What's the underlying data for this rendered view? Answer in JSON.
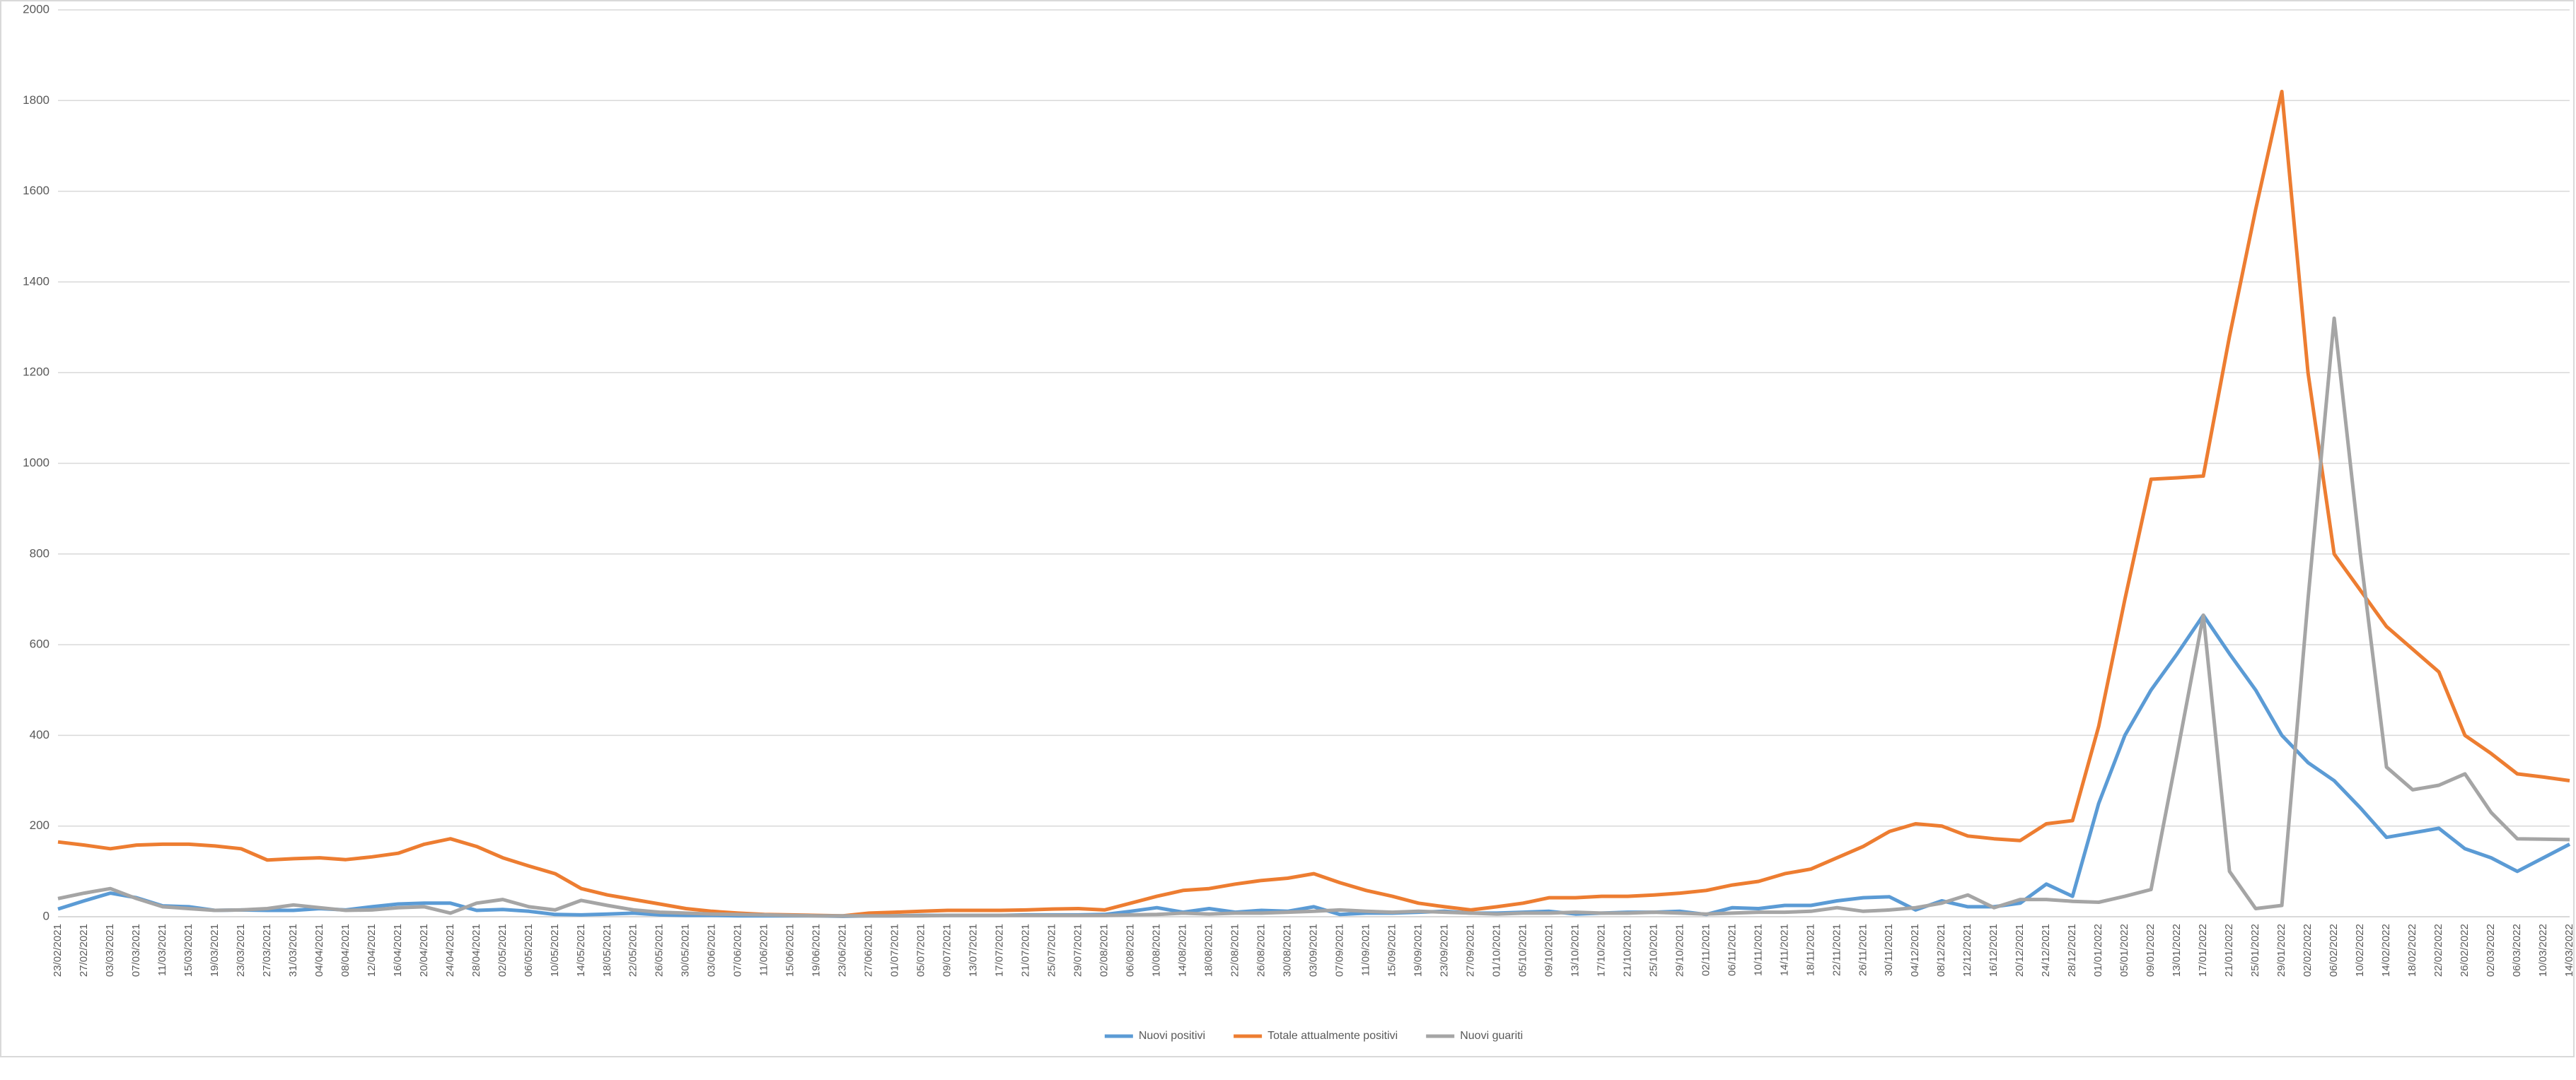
{
  "chart_data": {
    "type": "line",
    "categories": [
      "23/02/2021",
      "27/02/2021",
      "03/03/2021",
      "07/03/2021",
      "11/03/2021",
      "15/03/2021",
      "19/03/2021",
      "23/03/2021",
      "27/03/2021",
      "31/03/2021",
      "04/04/2021",
      "08/04/2021",
      "12/04/2021",
      "16/04/2021",
      "20/04/2021",
      "24/04/2021",
      "28/04/2021",
      "02/05/2021",
      "06/05/2021",
      "10/05/2021",
      "14/05/2021",
      "18/05/2021",
      "22/05/2021",
      "26/05/2021",
      "30/05/2021",
      "03/06/2021",
      "07/06/2021",
      "11/06/2021",
      "15/06/2021",
      "19/06/2021",
      "23/06/2021",
      "27/06/2021",
      "01/07/2021",
      "05/07/2021",
      "09/07/2021",
      "13/07/2021",
      "17/07/2021",
      "21/07/2021",
      "25/07/2021",
      "29/07/2021",
      "02/08/2021",
      "06/08/2021",
      "10/08/2021",
      "14/08/2021",
      "18/08/2021",
      "22/08/2021",
      "26/08/2021",
      "30/08/2021",
      "03/09/2021",
      "07/09/2021",
      "11/09/2021",
      "15/09/2021",
      "19/09/2021",
      "23/09/2021",
      "27/09/2021",
      "01/10/2021",
      "05/10/2021",
      "09/10/2021",
      "13/10/2021",
      "17/10/2021",
      "21/10/2021",
      "25/10/2021",
      "29/10/2021",
      "02/11/2021",
      "06/11/2021",
      "10/11/2021",
      "14/11/2021",
      "18/11/2021",
      "22/11/2021",
      "26/11/2021",
      "30/11/2021",
      "04/12/2021",
      "08/12/2021",
      "12/12/2021",
      "16/12/2021",
      "20/12/2021",
      "24/12/2021",
      "28/12/2021",
      "01/01/2022",
      "05/01/2022",
      "09/01/2022",
      "13/01/2022",
      "17/01/2022",
      "21/01/2022",
      "25/01/2022",
      "29/01/2022",
      "02/02/2022",
      "06/02/2022",
      "10/02/2022",
      "14/02/2022",
      "18/02/2022",
      "22/02/2022",
      "26/02/2022",
      "02/03/2022",
      "06/03/2022",
      "10/03/2022",
      "14/03/2022"
    ],
    "series": [
      {
        "name": "Nuovi positivi",
        "color": "#5b9bd5",
        "values": [
          17,
          35,
          52,
          42,
          24,
          22,
          14,
          15,
          14,
          14,
          18,
          15,
          22,
          28,
          30,
          30,
          14,
          16,
          12,
          5,
          4,
          6,
          8,
          4,
          3,
          3,
          2,
          2,
          2,
          2,
          1,
          2,
          2,
          3,
          3,
          3,
          3,
          4,
          4,
          4,
          5,
          12,
          20,
          10,
          18,
          10,
          14,
          12,
          22,
          5,
          8,
          8,
          10,
          12,
          8,
          8,
          10,
          12,
          6,
          8,
          10,
          10,
          12,
          5,
          20,
          18,
          25,
          25,
          35,
          42,
          44,
          15,
          35,
          22,
          22,
          30,
          72,
          45,
          250,
          400,
          500,
          580,
          665,
          580,
          500,
          400,
          340,
          300,
          240,
          175,
          185,
          195,
          150,
          130,
          100,
          130,
          160
        ]
      },
      {
        "name": "Totale attualmente positivi",
        "color": "#ed7d31",
        "values": [
          165,
          158,
          150,
          158,
          160,
          160,
          156,
          150,
          125,
          128,
          130,
          126,
          132,
          140,
          160,
          172,
          155,
          130,
          112,
          95,
          62,
          48,
          38,
          28,
          18,
          12,
          8,
          5,
          4,
          3,
          2,
          8,
          10,
          12,
          14,
          14,
          14,
          15,
          17,
          18,
          15,
          30,
          45,
          58,
          62,
          72,
          80,
          85,
          95,
          75,
          58,
          45,
          30,
          22,
          15,
          22,
          30,
          42,
          42,
          45,
          45,
          48,
          52,
          58,
          70,
          78,
          95,
          105,
          130,
          155,
          188,
          205,
          200,
          178,
          172,
          168,
          205,
          212,
          420,
          700,
          965,
          968,
          972,
          1280,
          1560,
          1820,
          1200,
          800,
          720,
          640,
          590,
          540,
          400,
          360,
          315,
          308,
          300
        ]
      },
      {
        "name": "Nuovi guariti",
        "color": "#a5a5a5",
        "values": [
          40,
          52,
          62,
          40,
          22,
          18,
          14,
          15,
          18,
          26,
          20,
          14,
          15,
          20,
          22,
          8,
          30,
          38,
          22,
          15,
          36,
          25,
          15,
          10,
          8,
          6,
          5,
          4,
          3,
          2,
          2,
          2,
          2,
          2,
          3,
          3,
          3,
          3,
          3,
          3,
          3,
          4,
          5,
          8,
          6,
          8,
          8,
          10,
          12,
          15,
          12,
          10,
          12,
          10,
          8,
          6,
          8,
          8,
          10,
          8,
          8,
          10,
          8,
          6,
          8,
          10,
          10,
          12,
          20,
          12,
          15,
          20,
          30,
          48,
          20,
          38,
          38,
          34,
          32,
          45,
          60,
          360,
          665,
          100,
          18,
          25,
          700,
          1320,
          800,
          330,
          280,
          290,
          315,
          230,
          172,
          171,
          170
        ]
      }
    ],
    "ylim": [
      0,
      2000
    ],
    "yticks": [
      0,
      200,
      400,
      600,
      800,
      1000,
      1200,
      1400,
      1600,
      1800,
      2000
    ],
    "grid": true,
    "legend": "bottom"
  }
}
